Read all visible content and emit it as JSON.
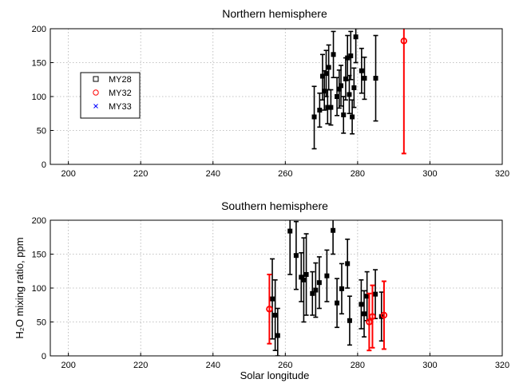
{
  "chart_data": [
    {
      "type": "scatter",
      "title": "Northern hemisphere",
      "xlabel": "",
      "ylabel": "",
      "xlim": [
        195,
        320
      ],
      "ylim": [
        0,
        200
      ],
      "xticks": [
        200,
        220,
        240,
        260,
        280,
        300,
        320
      ],
      "yticks": [
        0,
        50,
        100,
        150,
        200
      ],
      "grid": true,
      "legend": {
        "placement": "left",
        "entries": [
          {
            "name": "MY28",
            "marker": "square",
            "color": "#000000"
          },
          {
            "name": "MY32",
            "marker": "circle",
            "color": "#ff0000"
          },
          {
            "name": "MY33",
            "marker": "x",
            "color": "#0000ff"
          }
        ]
      },
      "series": [
        {
          "name": "MY28",
          "color": "#000000",
          "marker": "square",
          "points": [
            {
              "x": 268.0,
              "y": 70,
              "lo": 23,
              "hi": 115
            },
            {
              "x": 269.5,
              "y": 80,
              "lo": 55,
              "hi": 105
            },
            {
              "x": 270.3,
              "y": 130,
              "lo": 95,
              "hi": 162
            },
            {
              "x": 270.8,
              "y": 108,
              "lo": 80,
              "hi": 138
            },
            {
              "x": 271.3,
              "y": 134,
              "lo": 100,
              "hi": 168
            },
            {
              "x": 271.7,
              "y": 84,
              "lo": 60,
              "hi": 110
            },
            {
              "x": 272.0,
              "y": 143,
              "lo": 110,
              "hi": 176
            },
            {
              "x": 272.6,
              "y": 84,
              "lo": 58,
              "hi": 110
            },
            {
              "x": 273.3,
              "y": 162,
              "lo": 128,
              "hi": 196
            },
            {
              "x": 274.3,
              "y": 100,
              "lo": 72,
              "hi": 128
            },
            {
              "x": 274.9,
              "y": 111,
              "lo": 83,
              "hi": 139
            },
            {
              "x": 275.4,
              "y": 116,
              "lo": 86,
              "hi": 146
            },
            {
              "x": 276.1,
              "y": 73,
              "lo": 46,
              "hi": 100
            },
            {
              "x": 276.7,
              "y": 126,
              "lo": 95,
              "hi": 157
            },
            {
              "x": 277.2,
              "y": 157,
              "lo": 124,
              "hi": 190
            },
            {
              "x": 277.7,
              "y": 103,
              "lo": 75,
              "hi": 131
            },
            {
              "x": 278.1,
              "y": 160,
              "lo": 125,
              "hi": 196
            },
            {
              "x": 278.5,
              "y": 70,
              "lo": 45,
              "hi": 95
            },
            {
              "x": 279.0,
              "y": 113,
              "lo": 84,
              "hi": 142
            },
            {
              "x": 279.5,
              "y": 188,
              "lo": 150,
              "hi": 225
            },
            {
              "x": 281.1,
              "y": 138,
              "lo": 105,
              "hi": 171
            },
            {
              "x": 281.9,
              "y": 127,
              "lo": 96,
              "hi": 158
            },
            {
              "x": 285.0,
              "y": 127,
              "lo": 64,
              "hi": 190
            }
          ]
        },
        {
          "name": "MY32",
          "color": "#ff0000",
          "marker": "circle",
          "points": [
            {
              "x": 292.8,
              "y": 182,
              "lo": 16,
              "hi": 230
            }
          ]
        }
      ]
    },
    {
      "type": "scatter",
      "title": "Southern hemisphere",
      "xlabel": "Solar longitude",
      "ylabel": "H₂O mixing ratio, ppm",
      "xlim": [
        195,
        320
      ],
      "ylim": [
        0,
        200
      ],
      "xticks": [
        200,
        220,
        240,
        260,
        280,
        300,
        320
      ],
      "yticks": [
        0,
        50,
        100,
        150,
        200
      ],
      "grid": true,
      "series": [
        {
          "name": "MY28",
          "color": "#000000",
          "marker": "square",
          "points": [
            {
              "x": 256.4,
              "y": 84,
              "lo": 25,
              "hi": 143
            },
            {
              "x": 257.2,
              "y": 60,
              "lo": 8,
              "hi": 112
            },
            {
              "x": 257.9,
              "y": 30,
              "lo": 0,
              "hi": 70
            },
            {
              "x": 261.3,
              "y": 184,
              "lo": 120,
              "hi": 250
            },
            {
              "x": 263.0,
              "y": 148,
              "lo": 98,
              "hi": 198
            },
            {
              "x": 264.4,
              "y": 116,
              "lo": 80,
              "hi": 152
            },
            {
              "x": 265.1,
              "y": 112,
              "lo": 50,
              "hi": 174
            },
            {
              "x": 265.8,
              "y": 120,
              "lo": 60,
              "hi": 180
            },
            {
              "x": 267.5,
              "y": 92,
              "lo": 60,
              "hi": 124
            },
            {
              "x": 268.4,
              "y": 97,
              "lo": 57,
              "hi": 137
            },
            {
              "x": 269.4,
              "y": 108,
              "lo": 70,
              "hi": 146
            },
            {
              "x": 271.5,
              "y": 118,
              "lo": 80,
              "hi": 156
            },
            {
              "x": 273.2,
              "y": 185,
              "lo": 150,
              "hi": 220
            },
            {
              "x": 274.3,
              "y": 78,
              "lo": 42,
              "hi": 114
            },
            {
              "x": 275.6,
              "y": 99,
              "lo": 62,
              "hi": 136
            },
            {
              "x": 277.2,
              "y": 136,
              "lo": 100,
              "hi": 172
            },
            {
              "x": 277.8,
              "y": 52,
              "lo": 16,
              "hi": 88
            },
            {
              "x": 281.0,
              "y": 76,
              "lo": 40,
              "hi": 112
            },
            {
              "x": 281.8,
              "y": 62,
              "lo": 28,
              "hi": 96
            },
            {
              "x": 282.6,
              "y": 88,
              "lo": 52,
              "hi": 124
            },
            {
              "x": 284.9,
              "y": 91,
              "lo": 55,
              "hi": 127
            },
            {
              "x": 286.6,
              "y": 58,
              "lo": 22,
              "hi": 94
            }
          ]
        },
        {
          "name": "MY32",
          "color": "#ff0000",
          "marker": "circle",
          "points": [
            {
              "x": 255.6,
              "y": 69,
              "lo": 18,
              "hi": 120
            },
            {
              "x": 283.2,
              "y": 50,
              "lo": 8,
              "hi": 92
            },
            {
              "x": 284.1,
              "y": 58,
              "lo": 12,
              "hi": 104
            },
            {
              "x": 287.3,
              "y": 60,
              "lo": 10,
              "hi": 110
            }
          ]
        }
      ]
    }
  ]
}
